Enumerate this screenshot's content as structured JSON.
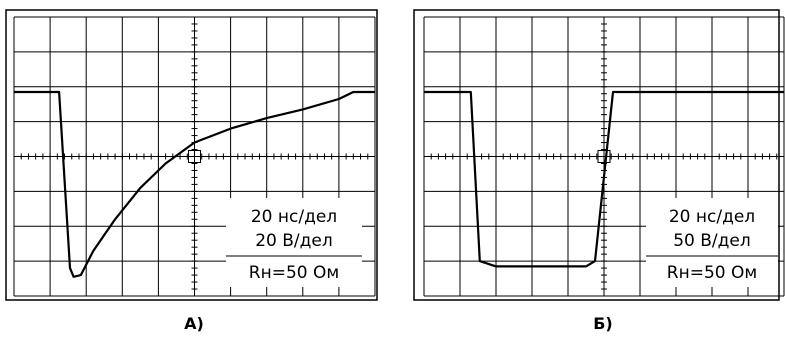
{
  "chart_data": [
    {
      "type": "line",
      "caption": "A)",
      "grid": true,
      "divisions": {
        "x": 10,
        "y": 8
      },
      "trace": [
        [
          0,
          5.85
        ],
        [
          1.25,
          5.85
        ],
        [
          1.55,
          0.8
        ],
        [
          1.65,
          0.55
        ],
        [
          1.85,
          0.6
        ],
        [
          2.2,
          1.3
        ],
        [
          2.8,
          2.2
        ],
        [
          3.5,
          3.1
        ],
        [
          4.2,
          3.8
        ],
        [
          5.0,
          4.4
        ],
        [
          6.0,
          4.8
        ],
        [
          7.0,
          5.1
        ],
        [
          8.0,
          5.35
        ],
        [
          9.0,
          5.65
        ],
        [
          9.4,
          5.85
        ],
        [
          10,
          5.85
        ]
      ],
      "annotations": [
        "20 нс/дел",
        "20 В/дел",
        "Rн=50 Ом"
      ]
    },
    {
      "type": "line",
      "caption": "Б)",
      "grid": true,
      "divisions": {
        "x": 10,
        "y": 8
      },
      "trace": [
        [
          0,
          5.85
        ],
        [
          1.3,
          5.85
        ],
        [
          1.55,
          1.0
        ],
        [
          2.0,
          0.85
        ],
        [
          4.5,
          0.85
        ],
        [
          4.75,
          1.0
        ],
        [
          5.25,
          5.85
        ],
        [
          10,
          5.85
        ]
      ],
      "annotations": [
        "20 нс/дел",
        "50 В/дел",
        "Rн=50 Ом"
      ]
    }
  ]
}
